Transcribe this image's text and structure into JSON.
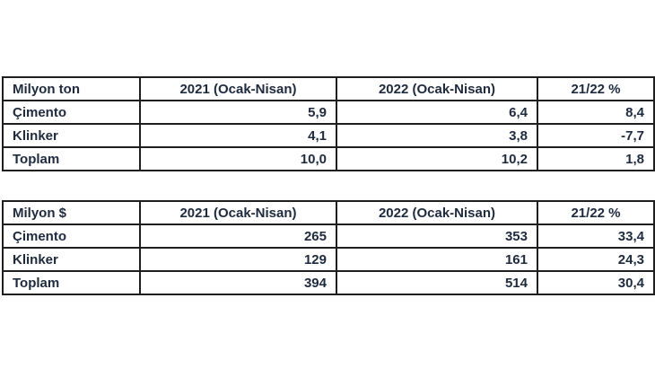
{
  "colors": {
    "background": "#ffffff",
    "table_border": "#1f1f1f",
    "table_text": "#1e2a3e"
  },
  "tables": [
    {
      "headers": [
        "Milyon ton",
        "2021 (Ocak-Nisan)",
        "2022 (Ocak-Nisan)",
        "21/22 %"
      ],
      "rows": [
        {
          "label": "Çimento",
          "values": [
            "5,9",
            "6,4",
            "8,4"
          ]
        },
        {
          "label": "Klinker",
          "values": [
            "4,1",
            "3,8",
            "-7,7"
          ]
        },
        {
          "label": "Toplam",
          "values": [
            "10,0",
            "10,2",
            "1,8"
          ]
        }
      ]
    },
    {
      "headers": [
        "Milyon $",
        "2021 (Ocak-Nisan)",
        "2022 (Ocak-Nisan)",
        "21/22 %"
      ],
      "rows": [
        {
          "label": "Çimento",
          "values": [
            "265",
            "353",
            "33,4"
          ]
        },
        {
          "label": "Klinker",
          "values": [
            "129",
            "161",
            "24,3"
          ]
        },
        {
          "label": "Toplam",
          "values": [
            "394",
            "514",
            "30,4"
          ]
        }
      ]
    }
  ]
}
